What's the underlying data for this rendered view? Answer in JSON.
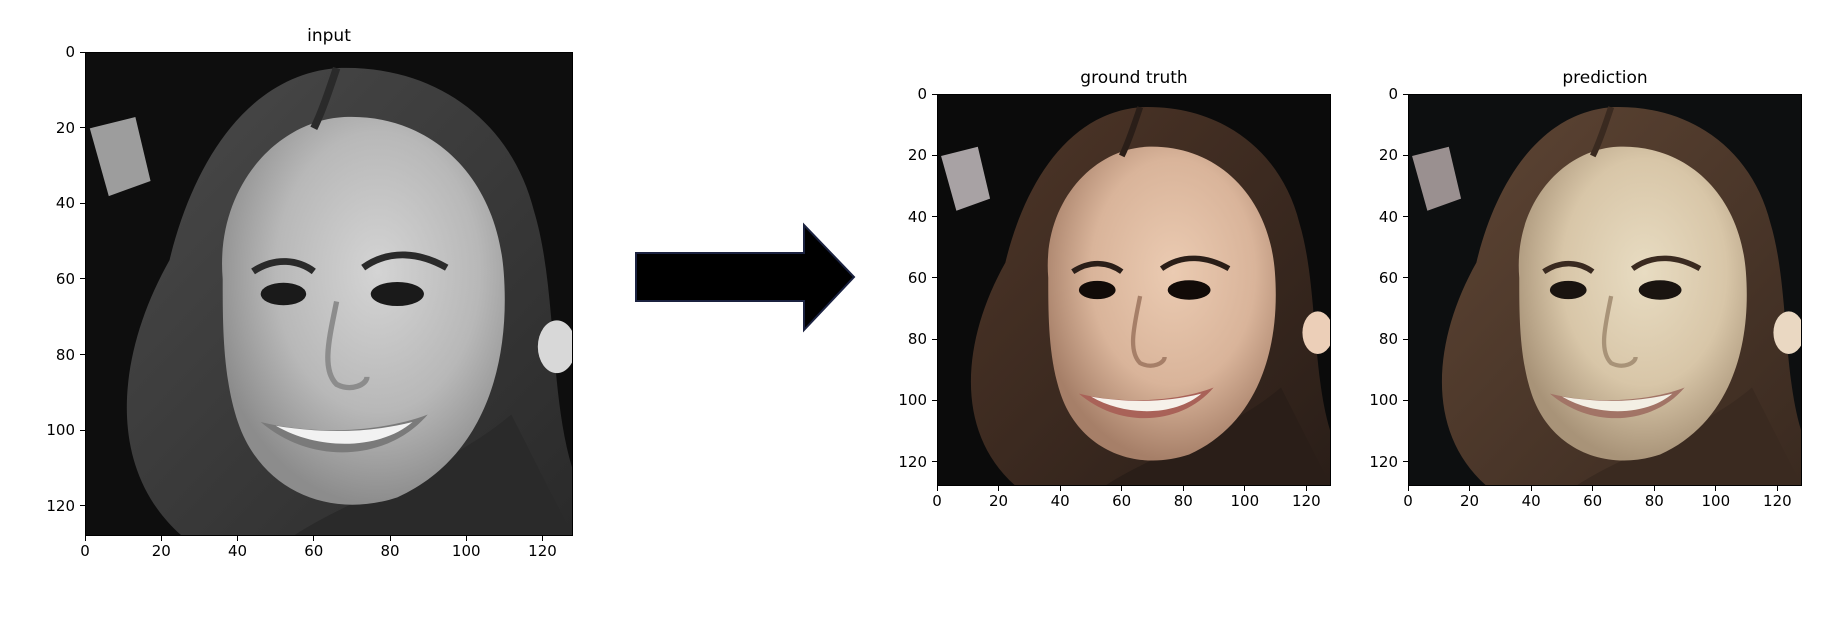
{
  "panels": [
    {
      "id": "input",
      "title": "input",
      "mode": "grayscale",
      "xticks": [
        "0",
        "20",
        "40",
        "60",
        "80",
        "100",
        "120"
      ],
      "yticks": [
        "0",
        "20",
        "40",
        "60",
        "80",
        "100",
        "120"
      ]
    },
    {
      "id": "ground-truth",
      "title": "ground truth",
      "mode": "color",
      "xticks": [
        "0",
        "20",
        "40",
        "60",
        "80",
        "100",
        "120"
      ],
      "yticks": [
        "0",
        "20",
        "40",
        "60",
        "80",
        "100",
        "120"
      ]
    },
    {
      "id": "prediction",
      "title": "prediction",
      "mode": "color-muted",
      "xticks": [
        "0",
        "20",
        "40",
        "60",
        "80",
        "100",
        "120"
      ],
      "yticks": [
        "0",
        "20",
        "40",
        "60",
        "80",
        "100",
        "120"
      ]
    }
  ],
  "arrow": {
    "color": "#000000",
    "outline": "#1b2240",
    "icon": "right-arrow-icon"
  },
  "colors": {
    "skin": "#d9b49a",
    "skin_muted": "#d8c6a8",
    "hair": "#2a1e18",
    "background": "#0b0b0b",
    "gray_skin": "#b8b8b8",
    "gray_hair": "#2a2a2a"
  }
}
